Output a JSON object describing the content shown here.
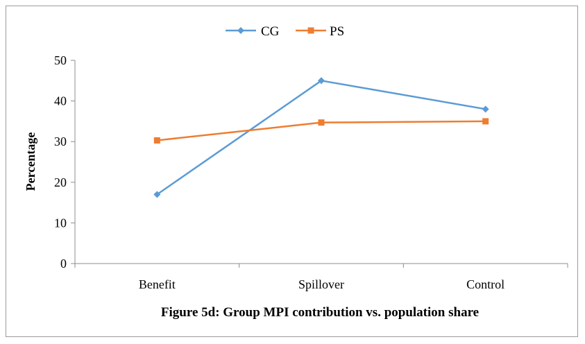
{
  "chart_data": {
    "type": "line",
    "categories": [
      "Benefit",
      "Spillover",
      "Control"
    ],
    "series": [
      {
        "name": "CG",
        "values": [
          17,
          45,
          38
        ],
        "color": "#5b9bd5",
        "marker": "diamond"
      },
      {
        "name": "PS",
        "values": [
          30.3,
          34.7,
          35
        ],
        "color": "#ed7d31",
        "marker": "square"
      }
    ],
    "ylabel": "Percentage",
    "ylim": [
      0,
      50
    ],
    "yticks": [
      "0",
      "10",
      "20",
      "30",
      "40",
      "50"
    ],
    "grid": false,
    "legend_position": "top",
    "caption": "Figure 5d: Group MPI contribution vs. population share"
  }
}
